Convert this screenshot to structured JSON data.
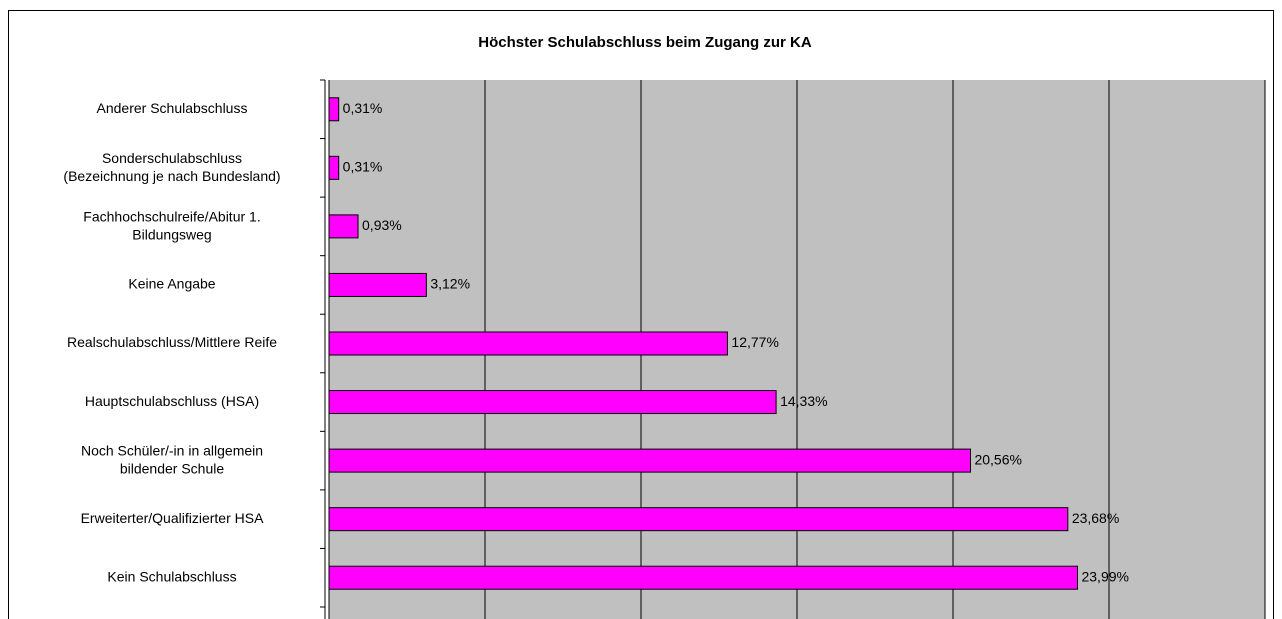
{
  "chart_data": {
    "type": "bar",
    "orientation": "horizontal",
    "title": "Höchster Schulabschluss beim Zugang zur KA",
    "categories": [
      "Anderer Schulabschluss",
      "Sonderschulabschluss\n(Bezeichnung je nach Bundesland)",
      "Fachhochschulreife/Abitur 1.\nBildungsweg",
      "Keine Angabe",
      "Realschulabschluss/Mittlere Reife",
      "Hauptschulabschluss (HSA)",
      "Noch Schüler/-in in allgemein\nbildender Schule",
      "Erweiterter/Qualifizierter HSA",
      "Kein Schulabschluss"
    ],
    "values": [
      0.31,
      0.31,
      0.93,
      3.12,
      12.77,
      14.33,
      20.56,
      23.68,
      23.99
    ],
    "value_labels": [
      "0,31%",
      "0,31%",
      "0,93%",
      "3,12%",
      "12,77%",
      "14,33%",
      "20,56%",
      "23,68%",
      "23,99%"
    ],
    "color": "#ff00ff",
    "xlim": [
      0,
      30
    ],
    "xticks": [
      0,
      5,
      10,
      15,
      20,
      25,
      30
    ],
    "grid": true
  }
}
